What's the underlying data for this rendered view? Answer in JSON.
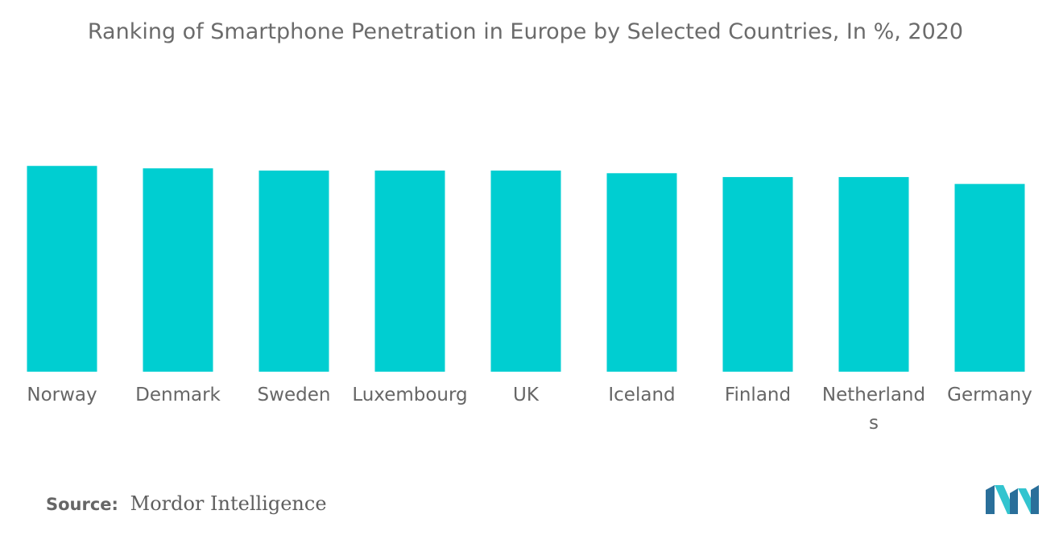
{
  "title": "Ranking of Smartphone Penetration in Europe by Selected Countries, In %, 2020",
  "source": {
    "label": "Source:",
    "value": "Mordor Intelligence"
  },
  "colors": {
    "bar": "#00ced1",
    "text": "#666666",
    "logo_dark": "#2a6f9a",
    "logo_light": "#33c4cf"
  },
  "logo": "mordor-intelligence-logo",
  "chart_data": {
    "type": "bar",
    "categories": [
      "Norway",
      "Denmark",
      "Sweden",
      "Luxembourg",
      "UK",
      "Iceland",
      "Finland",
      "Netherlands",
      "Germany"
    ],
    "values": [
      101.5,
      100.3,
      99.2,
      99.2,
      99.2,
      97.9,
      96.0,
      96.0,
      92.6
    ],
    "title": "Ranking of Smartphone Penetration in Europe by Selected Countries, In %, 2020",
    "xlabel": "",
    "ylabel": "",
    "ylim": [
      0,
      100
    ],
    "grid": false,
    "legend": "none"
  }
}
